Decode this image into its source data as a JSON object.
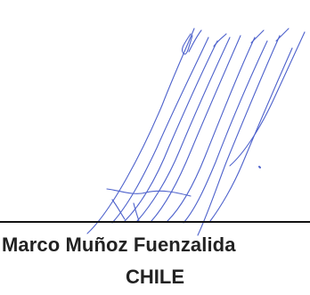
{
  "signature": {
    "name": "Marco Muñoz Fuenzalida",
    "country": "CHILE",
    "ink_color": "#3f55c8",
    "line_color": "#111111",
    "text_color": "#222222"
  }
}
